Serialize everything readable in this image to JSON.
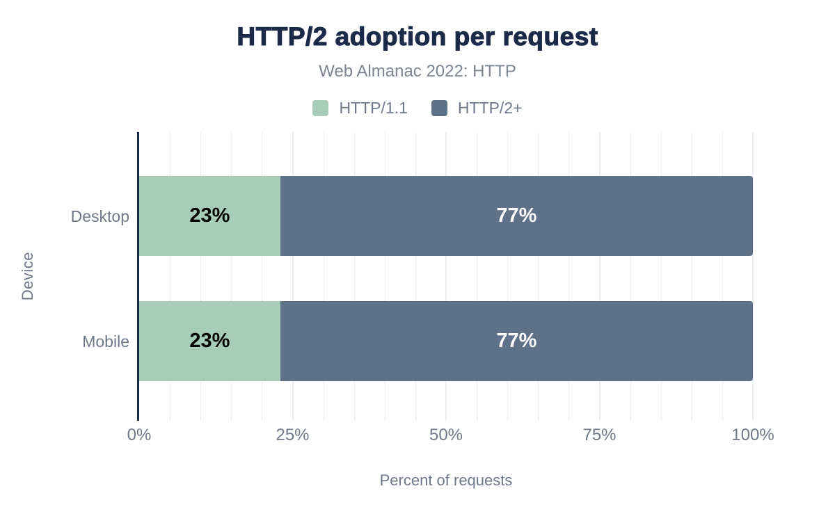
{
  "header": {
    "title": "HTTP/2 adoption per request",
    "subtitle": "Web Almanac 2022: HTTP"
  },
  "legend": {
    "items": [
      {
        "label": "HTTP/1.1",
        "color": "#a7ccb8"
      },
      {
        "label": "HTTP/2+",
        "color": "#5f7188"
      }
    ]
  },
  "axes": {
    "y_title": "Device",
    "x_title": "Percent of requests",
    "categories": [
      "Desktop",
      "Mobile"
    ],
    "x_ticks": [
      "0%",
      "25%",
      "50%",
      "75%",
      "100%"
    ],
    "x_tick_values": [
      0,
      25,
      50,
      75,
      100
    ]
  },
  "chart_data": {
    "type": "bar",
    "orientation": "horizontal",
    "stacked": true,
    "title": "HTTP/2 adoption per request",
    "subtitle": "Web Almanac 2022: HTTP",
    "xlabel": "Percent of requests",
    "ylabel": "Device",
    "categories": [
      "Desktop",
      "Mobile"
    ],
    "series": [
      {
        "name": "HTTP/1.1",
        "color": "#a7ccb8",
        "label_color": "#000000",
        "values": [
          23,
          23
        ],
        "labels": [
          "23%",
          "23%"
        ]
      },
      {
        "name": "HTTP/2+",
        "color": "#5f7188",
        "label_color": "#ffffff",
        "values": [
          77,
          77
        ],
        "labels": [
          "77%",
          "77%"
        ]
      }
    ],
    "xlim": [
      0,
      100
    ],
    "x_tick_interval": 25,
    "minor_gridline_interval": 5,
    "grid": true,
    "legend_position": "top"
  },
  "colors": {
    "title_text": "#1b2a49",
    "axis_line": "#1b2a49",
    "muted_text": "#6f7889",
    "gridline_major": "#eceef1",
    "gridline_minor": "#d9dde3"
  }
}
